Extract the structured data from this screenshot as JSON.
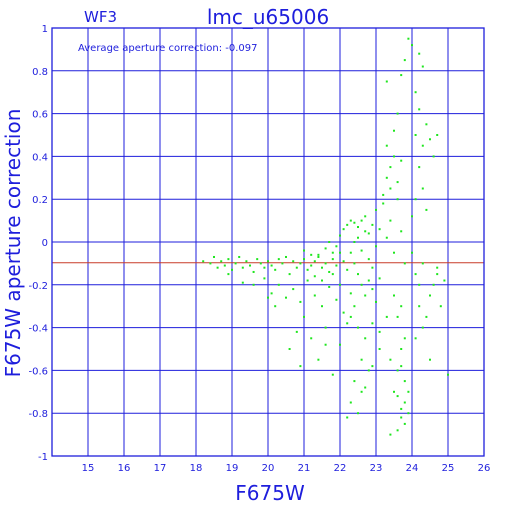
{
  "chart_data": {
    "type": "scatter",
    "panel_label": "WF3",
    "title": "lmc_u65006",
    "annotation": "Average aperture correction: -0.097",
    "xlabel": "F675W",
    "ylabel": "F675W aperture correction",
    "xlim": [
      14,
      26
    ],
    "ylim": [
      -1,
      1
    ],
    "x_ticks": [
      15,
      16,
      17,
      18,
      19,
      20,
      21,
      22,
      23,
      24,
      25,
      26
    ],
    "y_ticks": [
      -1,
      -0.8,
      -0.6,
      -0.4,
      -0.2,
      0,
      0.2,
      0.4,
      0.6,
      0.8,
      1
    ],
    "x_tick_labels": [
      "15",
      "16",
      "17",
      "18",
      "19",
      "20",
      "21",
      "22",
      "23",
      "24",
      "25",
      "26"
    ],
    "y_tick_labels": [
      "-1",
      "-0.8",
      "-0.6",
      "-0.4",
      "-0.2",
      "0",
      "0.2",
      "0.4",
      "0.6",
      "0.8",
      "1"
    ],
    "grid": true,
    "reference_line": {
      "y": -0.097,
      "color": "#c83c28"
    },
    "colors": {
      "frame": "#1e1edc",
      "grid": "#1e1edc",
      "points": "#1ee61e",
      "text": "#1e1edc"
    },
    "series": [
      {
        "marker": "square",
        "points": [
          [
            18.2,
            -0.09
          ],
          [
            18.4,
            -0.1
          ],
          [
            18.5,
            -0.07
          ],
          [
            18.6,
            -0.12
          ],
          [
            18.7,
            -0.09
          ],
          [
            18.8,
            -0.11
          ],
          [
            18.9,
            -0.08
          ],
          [
            19.0,
            -0.13
          ],
          [
            19.1,
            -0.1
          ],
          [
            19.2,
            -0.07
          ],
          [
            19.3,
            -0.12
          ],
          [
            19.4,
            -0.09
          ],
          [
            19.5,
            -0.11
          ],
          [
            19.6,
            -0.14
          ],
          [
            19.7,
            -0.08
          ],
          [
            19.8,
            -0.1
          ],
          [
            19.9,
            -0.12
          ],
          [
            20.0,
            -0.09
          ],
          [
            20.1,
            -0.11
          ],
          [
            20.2,
            -0.13
          ],
          [
            20.3,
            -0.08
          ],
          [
            20.4,
            -0.1
          ],
          [
            20.5,
            -0.07
          ],
          [
            20.6,
            -0.15
          ],
          [
            20.7,
            -0.09
          ],
          [
            20.8,
            -0.12
          ],
          [
            20.9,
            -0.1
          ],
          [
            21.0,
            -0.08
          ],
          [
            21.1,
            -0.13
          ],
          [
            21.2,
            -0.11
          ],
          [
            21.3,
            -0.09
          ],
          [
            21.4,
            -0.06
          ],
          [
            21.5,
            -0.12
          ],
          [
            21.6,
            -0.1
          ],
          [
            21.7,
            -0.14
          ],
          [
            21.8,
            -0.08
          ],
          [
            21.9,
            -0.11
          ],
          [
            22.0,
            -0.05
          ],
          [
            22.1,
            -0.09
          ],
          [
            22.2,
            -0.13
          ],
          [
            18.9,
            -0.15
          ],
          [
            19.3,
            -0.19
          ],
          [
            19.6,
            -0.2
          ],
          [
            19.9,
            -0.17
          ],
          [
            20.1,
            -0.24
          ],
          [
            20.3,
            -0.2
          ],
          [
            20.5,
            -0.26
          ],
          [
            20.7,
            -0.22
          ],
          [
            20.9,
            -0.28
          ],
          [
            21.1,
            -0.18
          ],
          [
            21.3,
            -0.25
          ],
          [
            21.5,
            -0.3
          ],
          [
            21.7,
            -0.21
          ],
          [
            21.9,
            -0.27
          ],
          [
            22.1,
            -0.33
          ],
          [
            22.3,
            -0.24
          ],
          [
            20.0,
            -0.26
          ],
          [
            20.2,
            -0.3
          ],
          [
            20.6,
            -0.5
          ],
          [
            20.8,
            -0.42
          ],
          [
            21.0,
            -0.35
          ],
          [
            21.2,
            -0.45
          ],
          [
            21.4,
            -0.55
          ],
          [
            21.6,
            -0.4
          ],
          [
            21.8,
            -0.62
          ],
          [
            22.0,
            -0.48
          ],
          [
            22.2,
            -0.38
          ],
          [
            22.4,
            -0.3
          ],
          [
            20.9,
            -0.58
          ],
          [
            21.6,
            -0.48
          ],
          [
            22.3,
            -0.05
          ],
          [
            22.4,
            -0.1
          ],
          [
            22.5,
            0.02
          ],
          [
            22.6,
            -0.04
          ],
          [
            22.7,
            0.05
          ],
          [
            22.8,
            -0.08
          ],
          [
            22.9,
            0.08
          ],
          [
            23.0,
            -0.02
          ],
          [
            22.5,
            0.07
          ],
          [
            22.6,
            0.1
          ],
          [
            22.7,
            0.12
          ],
          [
            22.8,
            0.04
          ],
          [
            22.9,
            -0.12
          ],
          [
            23.0,
            0.15
          ],
          [
            23.1,
            0.06
          ],
          [
            23.2,
            0.18
          ],
          [
            22.4,
            0.0
          ],
          [
            22.5,
            -0.15
          ],
          [
            22.6,
            -0.2
          ],
          [
            22.7,
            -0.25
          ],
          [
            22.8,
            -0.18
          ],
          [
            22.9,
            -0.22
          ],
          [
            23.0,
            -0.28
          ],
          [
            23.1,
            -0.17
          ],
          [
            22.3,
            -0.35
          ],
          [
            22.5,
            -0.4
          ],
          [
            22.7,
            -0.45
          ],
          [
            22.9,
            -0.38
          ],
          [
            23.1,
            -0.42
          ],
          [
            23.3,
            -0.35
          ],
          [
            22.6,
            -0.55
          ],
          [
            22.8,
            -0.6
          ],
          [
            22.4,
            -0.65
          ],
          [
            22.6,
            -0.7
          ],
          [
            22.3,
            -0.75
          ],
          [
            22.5,
            -0.8
          ],
          [
            22.7,
            -0.68
          ],
          [
            22.9,
            -0.58
          ],
          [
            23.1,
            -0.5
          ],
          [
            22.2,
            -0.82
          ],
          [
            23.3,
            0.02
          ],
          [
            23.4,
            0.1
          ],
          [
            23.5,
            -0.05
          ],
          [
            23.6,
            0.2
          ],
          [
            23.7,
            0.05
          ],
          [
            23.8,
            -0.1
          ],
          [
            23.3,
            0.3
          ],
          [
            23.4,
            0.35
          ],
          [
            23.5,
            0.4
          ],
          [
            23.6,
            0.28
          ],
          [
            23.7,
            0.38
          ],
          [
            23.4,
            0.25
          ],
          [
            23.3,
            0.45
          ],
          [
            23.5,
            0.52
          ],
          [
            23.6,
            0.6
          ],
          [
            23.2,
            0.22
          ],
          [
            23.5,
            -0.25
          ],
          [
            23.6,
            -0.35
          ],
          [
            23.7,
            -0.3
          ],
          [
            23.8,
            -0.45
          ],
          [
            23.4,
            -0.55
          ],
          [
            23.6,
            -0.6
          ],
          [
            23.7,
            -0.5
          ],
          [
            23.8,
            -0.65
          ],
          [
            23.5,
            -0.7
          ],
          [
            23.6,
            -0.72
          ],
          [
            23.7,
            -0.78
          ],
          [
            23.8,
            -0.75
          ],
          [
            23.9,
            -0.8
          ],
          [
            23.7,
            -0.82
          ],
          [
            23.8,
            -0.85
          ],
          [
            23.6,
            -0.88
          ],
          [
            23.4,
            -0.9
          ],
          [
            23.9,
            -0.7
          ],
          [
            23.7,
            -0.58
          ],
          [
            23.3,
            0.75
          ],
          [
            23.7,
            0.78
          ],
          [
            23.8,
            0.85
          ],
          [
            23.9,
            0.95
          ],
          [
            24.0,
            0.92
          ],
          [
            24.1,
            0.7
          ],
          [
            24.2,
            0.88
          ],
          [
            24.3,
            0.82
          ],
          [
            24.1,
            0.5
          ],
          [
            24.2,
            0.62
          ],
          [
            24.4,
            0.55
          ],
          [
            24.5,
            0.48
          ],
          [
            24.2,
            0.35
          ],
          [
            24.3,
            0.45
          ],
          [
            24.6,
            0.4
          ],
          [
            24.7,
            0.5
          ],
          [
            24.3,
            0.25
          ],
          [
            24.4,
            0.15
          ],
          [
            24.0,
            0.12
          ],
          [
            24.1,
            0.2
          ],
          [
            24.0,
            -0.05
          ],
          [
            24.1,
            -0.15
          ],
          [
            24.2,
            -0.2
          ],
          [
            24.3,
            -0.1
          ],
          [
            24.2,
            -0.3
          ],
          [
            24.3,
            -0.4
          ],
          [
            24.4,
            -0.35
          ],
          [
            24.5,
            -0.25
          ],
          [
            24.6,
            -0.2
          ],
          [
            24.7,
            -0.12
          ],
          [
            24.8,
            -0.3
          ],
          [
            24.9,
            -0.18
          ],
          [
            24.7,
            -0.15
          ],
          [
            24.5,
            -0.55
          ],
          [
            25.0,
            -0.62
          ],
          [
            24.1,
            -0.45
          ],
          [
            21.0,
            -0.04
          ],
          [
            21.2,
            -0.06
          ],
          [
            21.4,
            -0.07
          ],
          [
            21.6,
            -0.03
          ],
          [
            21.8,
            -0.05
          ],
          [
            22.0,
            0.03
          ],
          [
            22.1,
            0.06
          ],
          [
            22.2,
            0.08
          ],
          [
            21.9,
            -0.02
          ],
          [
            21.7,
            0.0
          ],
          [
            22.3,
            0.1
          ],
          [
            22.4,
            0.09
          ],
          [
            22.0,
            -0.2
          ],
          [
            21.8,
            -0.15
          ],
          [
            21.5,
            -0.18
          ],
          [
            21.3,
            -0.16
          ]
        ]
      }
    ]
  }
}
